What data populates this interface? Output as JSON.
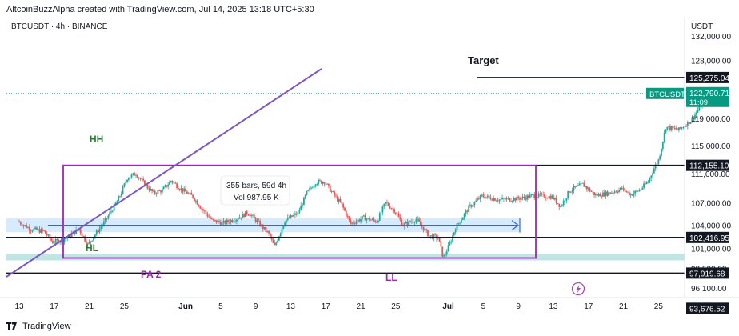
{
  "header": {
    "attribution": "AltcoinBuzzAlpha created with TradingView.com, Jul 14, 2025 13:18 UTC+5:30",
    "symbol_line": "BTCUSDT · 4h · BINANCE",
    "currency": "USDT",
    "brand": "TradingView"
  },
  "colors": {
    "up": "#26a69a",
    "down": "#ef5350",
    "range_box": "#9c27b0",
    "trendline": "#7e57c2",
    "arrow": "#2962ff",
    "band": "#bbdefb",
    "demand_zone": "#b2dfdb",
    "label_green": "#2e7d32",
    "label_purple": "#9c27b0",
    "last_price_bg": "#089981",
    "level_bg": "#131722"
  },
  "chart_data": {
    "type": "candlestick",
    "timeframe": "4h",
    "x_ticks": [
      "13",
      "17",
      "21",
      "25",
      "Jun",
      "5",
      "9",
      "13",
      "17",
      "21",
      "25",
      "Jul",
      "5",
      "9",
      "13",
      "17",
      "21",
      "25"
    ],
    "y_ticks": [
      "132,000.00",
      "128,000.00",
      "119,000.00",
      "115,000.00",
      "111,000.00",
      "107,000.00",
      "104,000.00",
      "101,000.00",
      "98,500.00",
      "96,100.00"
    ],
    "ylim": [
      92000,
      134000
    ],
    "y_scale": "log",
    "price_path_days": [
      [
        0,
        104500
      ],
      [
        1.5,
        103500
      ],
      [
        3,
        103200
      ],
      [
        4,
        101800
      ],
      [
        5.5,
        102300
      ],
      [
        7,
        103500
      ],
      [
        8,
        101500
      ],
      [
        10,
        104600
      ],
      [
        11,
        106500
      ],
      [
        11.7,
        108000
      ],
      [
        12.5,
        110400
      ],
      [
        13.5,
        111000
      ],
      [
        14.5,
        109500
      ],
      [
        15.5,
        108300
      ],
      [
        16.5,
        108700
      ],
      [
        17.5,
        110000
      ],
      [
        18.5,
        109000
      ],
      [
        20,
        107800
      ],
      [
        21,
        106200
      ],
      [
        22.2,
        104600
      ],
      [
        23.5,
        104300
      ],
      [
        25,
        104900
      ],
      [
        26.3,
        105700
      ],
      [
        27.5,
        104300
      ],
      [
        28.7,
        102800
      ],
      [
        29.3,
        101200
      ],
      [
        30.5,
        104600
      ],
      [
        32,
        105600
      ],
      [
        33,
        108300
      ],
      [
        34,
        109800
      ],
      [
        35,
        109900
      ],
      [
        36,
        108200
      ],
      [
        37,
        106700
      ],
      [
        38,
        104200
      ],
      [
        39.5,
        105000
      ],
      [
        41,
        104500
      ],
      [
        42,
        107000
      ],
      [
        43,
        106000
      ],
      [
        44,
        104000
      ],
      [
        45.5,
        104800
      ],
      [
        47,
        102600
      ],
      [
        48,
        102400
      ],
      [
        48.6,
        99800
      ],
      [
        49.3,
        101500
      ],
      [
        50,
        103700
      ],
      [
        51.5,
        106300
      ],
      [
        53,
        107900
      ],
      [
        55,
        107400
      ],
      [
        57.5,
        107600
      ],
      [
        59,
        108000
      ],
      [
        61,
        107800
      ],
      [
        62,
        106500
      ],
      [
        63,
        108600
      ],
      [
        64.5,
        109500
      ],
      [
        66,
        108000
      ],
      [
        67.5,
        108300
      ],
      [
        69,
        108900
      ],
      [
        70,
        108100
      ],
      [
        71,
        108700
      ],
      [
        72,
        109900
      ],
      [
        72.6,
        111600
      ],
      [
        73.2,
        113000
      ],
      [
        74,
        117700
      ],
      [
        75.5,
        117300
      ],
      [
        77,
        118800
      ],
      [
        78,
        121000
      ],
      [
        78.3,
        122800
      ]
    ],
    "highlighted_range": {
      "bars": "355 bars, 59d 4h",
      "volume": "Vol 987.95 K"
    },
    "price_labels": [
      {
        "value": 125275.04,
        "text": "125,275.04",
        "style": "level"
      },
      {
        "value": 122790.71,
        "text": "122,790.71",
        "sub": "11:09",
        "style": "last",
        "tag": "BTCUSDT"
      },
      {
        "value": 112155.1,
        "text": "112,155.10",
        "style": "level"
      },
      {
        "value": 102416.95,
        "text": "102,416.95",
        "style": "level"
      },
      {
        "value": 97919.68,
        "text": "97,919.68",
        "style": "level"
      },
      {
        "value": 93676.52,
        "text": "93,676.52",
        "style": "level"
      }
    ],
    "horizontal_levels": [
      125275.04,
      112155.1,
      102416.95,
      97919.68
    ],
    "annotations": {
      "target": "Target",
      "hh": "HH",
      "hl": "HL",
      "pa2": "PA 2",
      "ll": "LL"
    }
  }
}
